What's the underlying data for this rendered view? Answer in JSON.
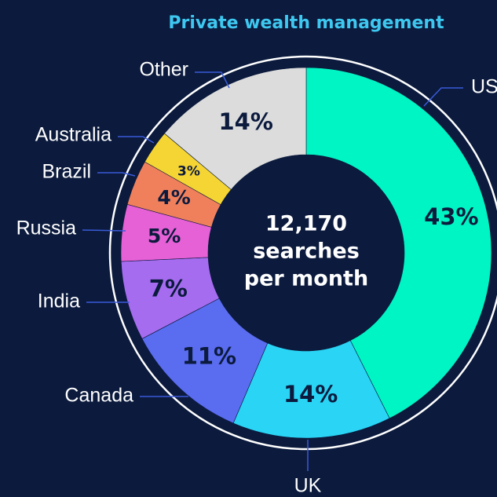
{
  "chart_data": {
    "type": "donut",
    "title": "Private wealth management",
    "center_label": [
      "12,170",
      "searches",
      "per month"
    ],
    "categories": [
      "US",
      "UK",
      "Canada",
      "India",
      "Russia",
      "Brazil",
      "Australia",
      "Other"
    ],
    "values": [
      43,
      14,
      11,
      7,
      5,
      4,
      3,
      14
    ],
    "value_labels": [
      "43%",
      "14%",
      "11%",
      "7%",
      "5%",
      "4%",
      "3%",
      "14%"
    ],
    "colors": [
      "#00f5c4",
      "#29d4f5",
      "#5a6cf0",
      "#a66cf0",
      "#e660d6",
      "#f0805c",
      "#f5d533",
      "#dcdcdc"
    ]
  }
}
